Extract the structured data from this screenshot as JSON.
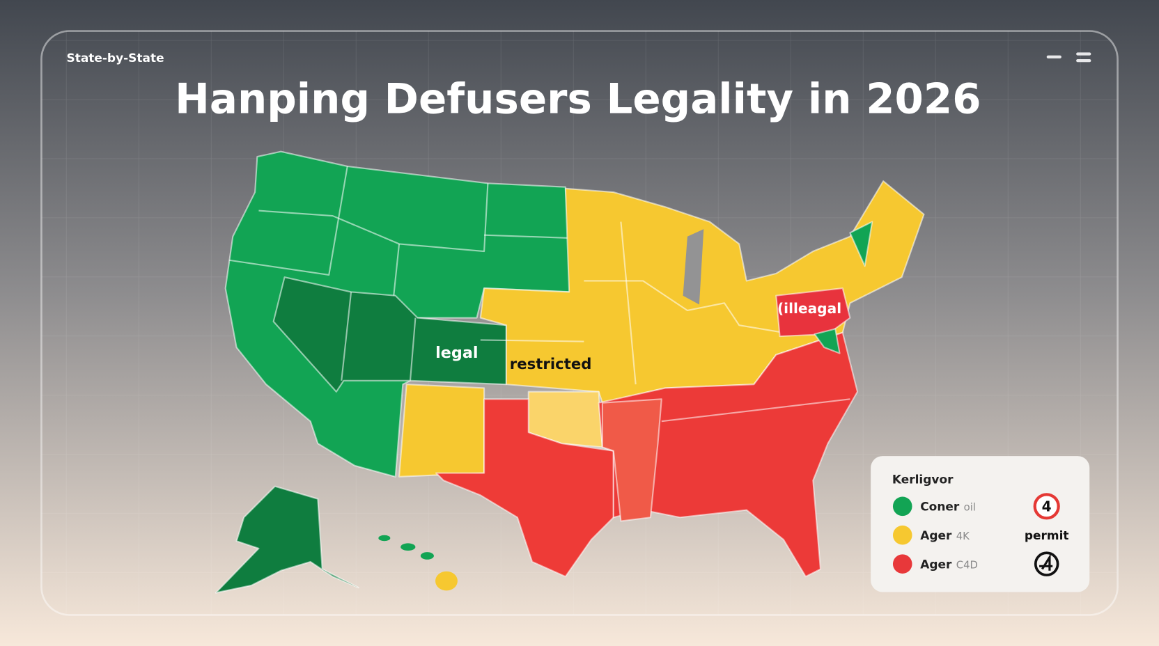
{
  "header": {
    "label": "State-by-State",
    "title": "Hanping Defusers Legality in 2026"
  },
  "map": {
    "labels": [
      "legal",
      "restricted",
      "(illeagal"
    ]
  },
  "legend": {
    "title": "Kerligvor",
    "items": [
      {
        "label": "Coner",
        "note": "oil"
      },
      {
        "label": "Ager",
        "note": "4K"
      },
      {
        "label": "Ager",
        "note": "C4D"
      }
    ],
    "badge": "4",
    "badge_caption": "permit"
  }
}
